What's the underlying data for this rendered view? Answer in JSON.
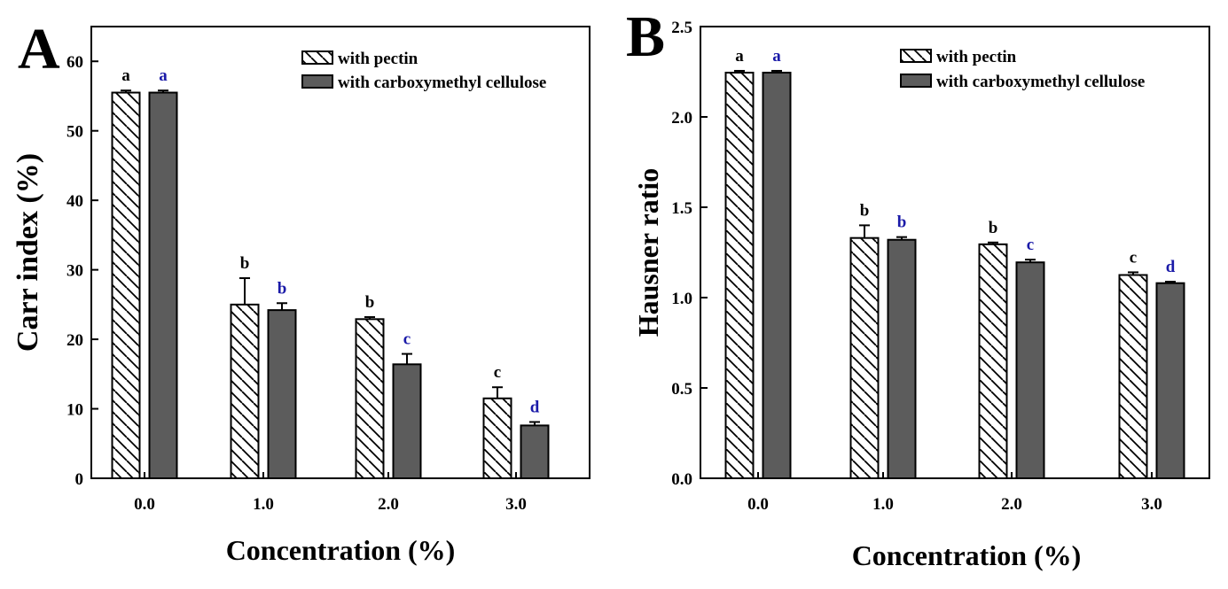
{
  "colors": {
    "pectin_fill": "#ffffff",
    "pectin_hatch": "#000000",
    "cmc_fill": "#5c5c5c",
    "sig_pectin": "#000000",
    "sig_cmc": "#1a1aa8"
  },
  "chart_data": [
    {
      "type": "bar",
      "panel_label": "A",
      "title": "",
      "xlabel": "Concentration (%)",
      "ylabel": "Carr index (%)",
      "ylim": [
        0,
        65
      ],
      "yticks": [
        0,
        10,
        20,
        30,
        40,
        50,
        60
      ],
      "ytick_labels": [
        "0",
        "10",
        "20",
        "30",
        "40",
        "50",
        "60"
      ],
      "categories": [
        "0.0",
        "1.0",
        "2.0",
        "3.0"
      ],
      "grid": false,
      "legend_position": "top-right",
      "series": [
        {
          "name": "with pectin",
          "pattern": "hatched",
          "values": [
            55.5,
            25.0,
            22.9,
            11.5
          ],
          "errors": [
            0.3,
            3.8,
            0.3,
            1.6
          ],
          "letters": [
            "a",
            "b",
            "b",
            "c"
          ]
        },
        {
          "name": "with carboxymethyl cellulose",
          "pattern": "solid",
          "values": [
            55.5,
            24.2,
            16.4,
            7.6
          ],
          "errors": [
            0.3,
            1.0,
            1.5,
            0.5
          ],
          "letters": [
            "a",
            "b",
            "c",
            "d"
          ]
        }
      ]
    },
    {
      "type": "bar",
      "panel_label": "B",
      "title": "",
      "xlabel": "Concentration (%)",
      "ylabel": "Hausner ratio",
      "ylim": [
        0,
        2.5
      ],
      "yticks": [
        0,
        0.5,
        1.0,
        1.5,
        2.0,
        2.5
      ],
      "ytick_labels": [
        "0.0",
        "0.5",
        "1.0",
        "1.5",
        "2.0",
        "2.5"
      ],
      "categories": [
        "0.0",
        "1.0",
        "2.0",
        "3.0"
      ],
      "grid": false,
      "legend_position": "top-right",
      "series": [
        {
          "name": "with pectin",
          "pattern": "hatched",
          "values": [
            2.245,
            1.33,
            1.295,
            1.125
          ],
          "errors": [
            0.01,
            0.07,
            0.01,
            0.015
          ],
          "letters": [
            "a",
            "b",
            "b",
            "c"
          ]
        },
        {
          "name": "with carboxymethyl cellulose",
          "pattern": "solid",
          "values": [
            2.245,
            1.32,
            1.195,
            1.08
          ],
          "errors": [
            0.01,
            0.015,
            0.015,
            0.008
          ],
          "letters": [
            "a",
            "b",
            "c",
            "d"
          ]
        }
      ]
    }
  ]
}
